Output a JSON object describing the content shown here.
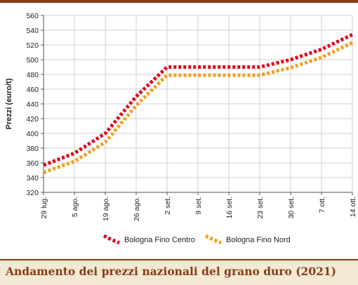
{
  "chart_data": {
    "type": "line",
    "title": "Andamento dei prezzi nazionali del grano duro (2021)",
    "xlabel": "",
    "ylabel": "Prezzi (euro/t)",
    "ylim": [
      320,
      560
    ],
    "ytick_step": 20,
    "grid": true,
    "legend_position": "bottom",
    "categories": [
      "29 lug.",
      "5 ago.",
      "19 ago.",
      "26 ago.",
      "2 set.",
      "9 set.",
      "16 set.",
      "23 set.",
      "30 set.",
      "7 ott.",
      "14 ott."
    ],
    "series": [
      {
        "name": "Bologna Fino Centro",
        "color": "#e3001b",
        "values": [
          357,
          373,
          400,
          450,
          490,
          490,
          490,
          490,
          500,
          514,
          534
        ]
      },
      {
        "name": "Bologna Fino Nord",
        "color": "#f0a020",
        "values": [
          347,
          362,
          388,
          438,
          479,
          479,
          479,
          479,
          489,
          503,
          523
        ]
      }
    ]
  }
}
